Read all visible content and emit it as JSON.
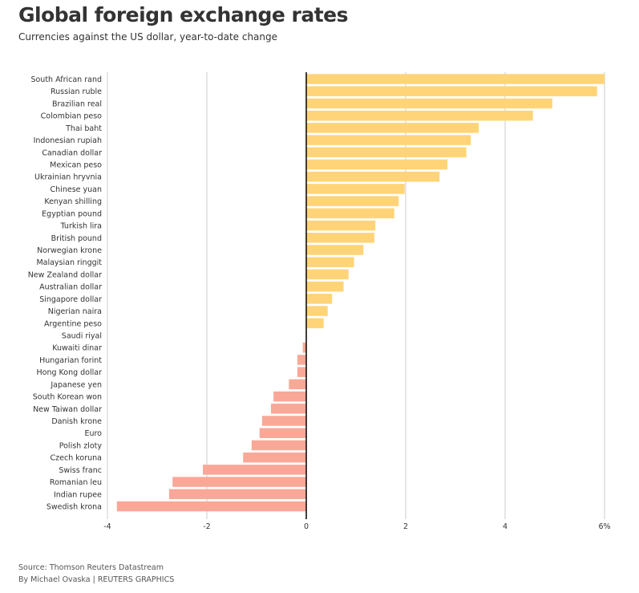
{
  "chart_data": {
    "type": "bar",
    "orientation": "horizontal",
    "title": "Global foreign exchange rates",
    "subtitle": "Currencies against the US dollar, year-to-date change",
    "xlabel": "",
    "ylabel": "",
    "xlim": [
      -4,
      6
    ],
    "xticks": [
      -4,
      -2,
      0,
      2,
      4,
      6
    ],
    "xtick_labels": [
      "-4",
      "-2",
      "0",
      "2",
      "4",
      "6%"
    ],
    "grid": true,
    "positive_color": "#FFD478",
    "negative_color": "#F9A898",
    "categories": [
      "South African rand",
      "Russian ruble",
      "Brazilian real",
      "Colombian peso",
      "Thai baht",
      "Indonesian rupiah",
      "Canadian dollar",
      "Mexican peso",
      "Ukrainian hryvnia",
      "Chinese yuan",
      "Kenyan shilling",
      "Egyptian pound",
      "Turkish lira",
      "British pound",
      "Norwegian krone",
      "Malaysian ringgit",
      "New Zealand dollar",
      "Australian dollar",
      "Singapore dollar",
      "Nigerian naira",
      "Argentine peso",
      "Saudi riyal",
      "Kuwaiti dinar",
      "Hungarian forint",
      "Hong Kong dollar",
      "Japanese yen",
      "South Korean won",
      "New Taiwan dollar",
      "Danish krone",
      "Euro",
      "Polish zloty",
      "Czech koruna",
      "Swiss franc",
      "Romanian leu",
      "Indian rupee",
      "Swedish krona"
    ],
    "values": [
      6.0,
      5.85,
      4.95,
      4.56,
      3.47,
      3.31,
      3.22,
      2.84,
      2.68,
      1.98,
      1.86,
      1.77,
      1.39,
      1.37,
      1.15,
      0.96,
      0.85,
      0.75,
      0.52,
      0.43,
      0.35,
      0.01,
      -0.07,
      -0.18,
      -0.18,
      -0.35,
      -0.66,
      -0.71,
      -0.89,
      -0.94,
      -1.1,
      -1.27,
      -2.08,
      -2.69,
      -2.76,
      -3.81
    ]
  },
  "footer": {
    "source": "Source: Thomson Reuters Datastream",
    "credit": "By Michael Ovaska | REUTERS GRAPHICS"
  }
}
